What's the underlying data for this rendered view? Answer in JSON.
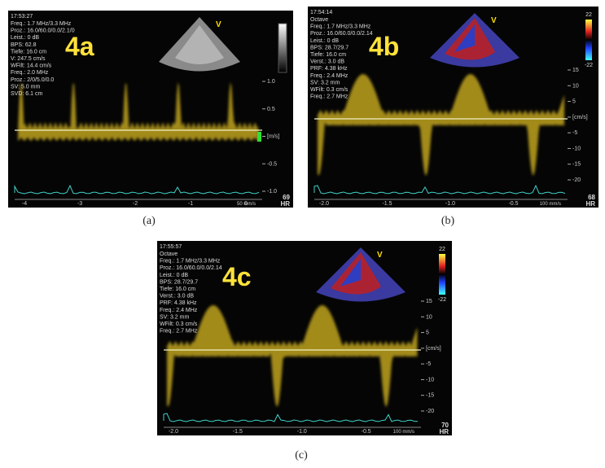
{
  "panels": [
    {
      "label": "4a",
      "caption": "(a)",
      "time": "17:53:27",
      "settings": [
        "Freq.: 1.7 MHz/3.3 MHz",
        "Proz.: 16.0/60.0/0.0/2.1/0",
        "Leist.: 0 dB",
        "BPS: 62.8",
        "Tiefe: 16.0 cm",
        "V: 247.5 cm/s",
        "WFilt: 14.4 cm/s",
        "Freq.: 2.0 MHz",
        "Proz.: 2/0/5.0/0.0",
        "SV: 5.0 mm",
        "SVD: 6.1 cm"
      ],
      "scale_ticks": [
        "1.0",
        "0.5",
        "[m/s]",
        "-0.5",
        "-1.0"
      ],
      "time_ticks": [
        "-4",
        "-3",
        "-2",
        "-1",
        "0"
      ],
      "hr": "69",
      "hr_unit": "HR",
      "sweep": "50 mm/s",
      "fan_marker": "V"
    },
    {
      "label": "4b",
      "caption": "(b)",
      "time": "17:54:14",
      "settings": [
        "Octave",
        "Freq.: 1.7 MHz/3.3 MHz",
        "Proz.: 16.0/60.0/0.0/2.14",
        "Leist.: 0 dB",
        "BPS: 28.7/29.7",
        "Tiefe: 16.0 cm",
        "Verst.: 3.0 dB",
        "PRF: 4.38 kHz",
        "Freq.: 2.4 MHz",
        "SV: 3.2 mm",
        "WFilt: 0.3 cm/s",
        "Freq.: 2.7 MHz"
      ],
      "scale_ticks": [
        "15",
        "10",
        "5",
        "[cm/s]",
        "-5",
        "-10",
        "-15",
        "-20"
      ],
      "time_ticks": [
        "-2.0",
        "-1.5",
        "-1.0",
        "-0.5"
      ],
      "colorbar_labels": [
        "22",
        "-22"
      ],
      "hr": "68",
      "hr_unit": "HR",
      "sweep": "100 mm/s",
      "fan_marker": "V"
    },
    {
      "label": "4c",
      "caption": "(c)",
      "time": "17:55:57",
      "settings": [
        "Octave",
        "Freq.: 1.7 MHz/3.3 MHz",
        "Proz.: 16.0/60.0/0.0/2.14",
        "Leist.: 0 dB",
        "BPS: 28.7/29.7",
        "Tiefe: 16.0 cm",
        "Verst.: 3.0 dB",
        "PRF: 4.38 kHz",
        "Freq.: 2.4 MHz",
        "SV: 3.2 mm",
        "WFilt: 0.3 cm/s",
        "Freq.: 2.7 MHz"
      ],
      "scale_ticks": [
        "15",
        "10",
        "5",
        "[cm/s]",
        "-5",
        "-10",
        "-15",
        "-20"
      ],
      "time_ticks": [
        "-2.0",
        "-1.5",
        "-1.0",
        "-0.5"
      ],
      "colorbar_labels": [
        "22",
        "-22"
      ],
      "hr": "70",
      "hr_unit": "HR",
      "sweep": "100 mm/s",
      "fan_marker": "V"
    }
  ]
}
